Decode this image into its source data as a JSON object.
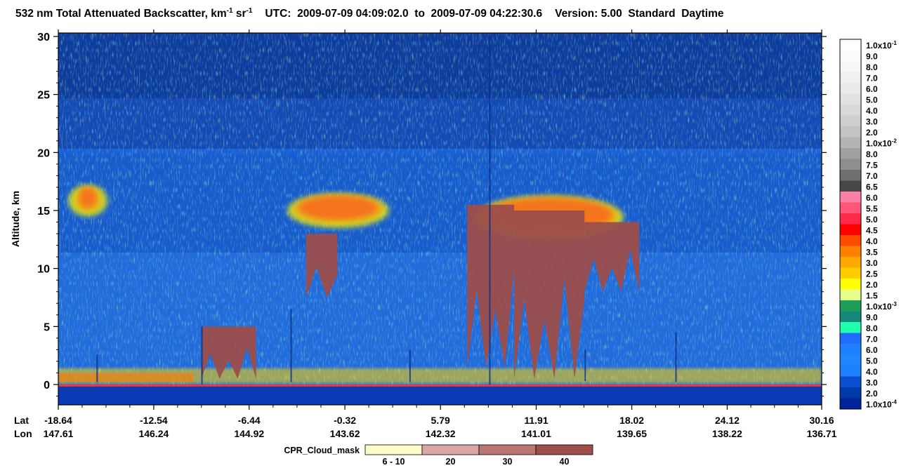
{
  "title": {
    "main": "532 nm Total Attenuated Backscatter, km",
    "unit_exp1": "-1",
    "unit_sr": " sr",
    "unit_exp2": "-1",
    "utc_label": "UTC:",
    "start": "2009-07-09 04:09:02.0",
    "to": "to",
    "end": "2009-07-09 04:22:30.6",
    "version": "Version: 5.00",
    "standard": "Standard",
    "daytime": "Daytime"
  },
  "chart_data": {
    "type": "heatmap",
    "ylabel": "Altitude, km",
    "ylim": [
      -2,
      30
    ],
    "y_ticks": [
      "30",
      "25",
      "20",
      "15",
      "10",
      "5",
      "0"
    ],
    "x_labels": {
      "lat_label": "Lat",
      "lon_label": "Lon",
      "lat": [
        "-18.64",
        "-12.54",
        "-6.44",
        "-0.32",
        "5.79",
        "11.91",
        "18.02",
        "24.12",
        "30.16"
      ],
      "lon": [
        "147.61",
        "146.24",
        "144.92",
        "143.62",
        "142.32",
        "141.01",
        "139.65",
        "138.22",
        "136.71"
      ]
    },
    "colorbar": {
      "labels": [
        {
          "text": "1.0x10",
          "exp": "-1"
        },
        {
          "text": "9.0"
        },
        {
          "text": "8.0"
        },
        {
          "text": "7.0"
        },
        {
          "text": "6.0"
        },
        {
          "text": "5.0"
        },
        {
          "text": "4.0"
        },
        {
          "text": "3.0"
        },
        {
          "text": "2.0"
        },
        {
          "text": "1.0x10",
          "exp": "-2"
        },
        {
          "text": "8.0"
        },
        {
          "text": "7.5"
        },
        {
          "text": "7.0"
        },
        {
          "text": "6.5"
        },
        {
          "text": "6.0"
        },
        {
          "text": "5.5"
        },
        {
          "text": "5.0"
        },
        {
          "text": "4.5"
        },
        {
          "text": "4.0"
        },
        {
          "text": "3.5"
        },
        {
          "text": "3.0"
        },
        {
          "text": "2.5"
        },
        {
          "text": "2.0"
        },
        {
          "text": "1.5"
        },
        {
          "text": "1.0x10",
          "exp": "-3"
        },
        {
          "text": "9.0"
        },
        {
          "text": "8.0"
        },
        {
          "text": "7.0"
        },
        {
          "text": "6.0"
        },
        {
          "text": "5.0"
        },
        {
          "text": "4.0"
        },
        {
          "text": "3.0"
        },
        {
          "text": "2.0"
        },
        {
          "text": "1.0x10",
          "exp": "-4"
        }
      ],
      "colors": [
        "#ffffff",
        "#fbfbfb",
        "#f6f6f6",
        "#f0f0f0",
        "#eaeaea",
        "#e2e2e2",
        "#d9d9d9",
        "#cfcfcf",
        "#c3c3c3",
        "#b4b4b4",
        "#a0a0a0",
        "#8e8e8e",
        "#707070",
        "#474747",
        "#ff7fa6",
        "#ff5577",
        "#ff2a4a",
        "#ff0000",
        "#ff4a00",
        "#ff8000",
        "#ffa800",
        "#ffcc00",
        "#ffff00",
        "#e6ff8c",
        "#1d9f5a",
        "#16887a",
        "#20ffb0",
        "#1f6cff",
        "#1f80ff",
        "#1f88ff",
        "#1f80ff",
        "#0a4fd0",
        "#003aa8",
        "#00249a"
      ]
    },
    "cloud_mask": {
      "label": "CPR_Cloud_mask",
      "categories": [
        "6 - 10",
        "20",
        "30",
        "40"
      ],
      "colors": [
        "#fffbc6",
        "#d9a7a5",
        "#b97673",
        "#9c4e4b"
      ]
    },
    "features": {
      "cirrus_layers": [
        {
          "lat_start": -15.5,
          "lat_end": -18.0,
          "alt_low": 14.5,
          "alt_high": 17.2
        },
        {
          "lat_start": -4.0,
          "lat_end": 2.5,
          "alt_low": 13.5,
          "alt_high": 16.5
        },
        {
          "lat_start": 8.0,
          "lat_end": 17.5,
          "alt_low": 12.5,
          "alt_high": 16.3
        }
      ],
      "radar_cloud_columns_km": [
        [
          -9.5,
          -6.0,
          0.5,
          5.0
        ],
        [
          -2.8,
          -0.8,
          7.5,
          13.0
        ],
        [
          7.5,
          10.5,
          1.5,
          15.5
        ],
        [
          10.5,
          15.0,
          0.5,
          15.0
        ],
        [
          15.0,
          18.5,
          8.0,
          14.0
        ]
      ]
    }
  }
}
